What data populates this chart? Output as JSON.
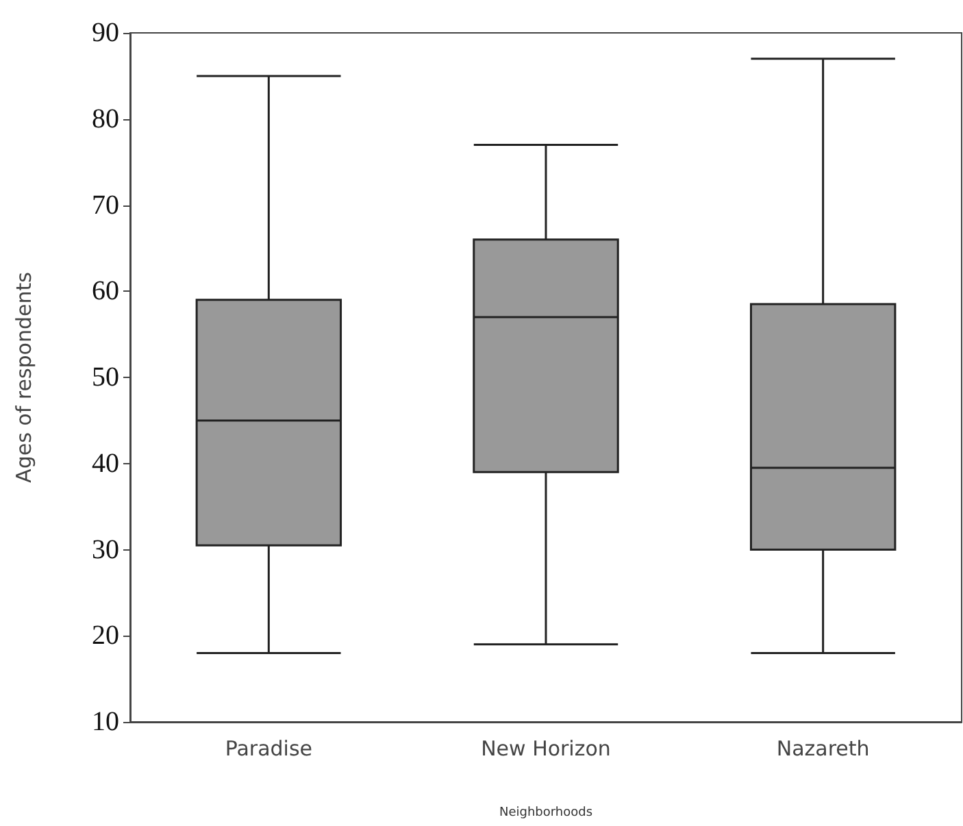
{
  "chart_data": {
    "type": "box",
    "xlabel": "Neighborhoods",
    "ylabel": "Ages of respondents",
    "categories": [
      "Paradise",
      "New Horizon",
      "Nazareth"
    ],
    "boxes": [
      {
        "low": 18,
        "q1": 30.5,
        "median": 45,
        "q3": 59,
        "high": 85
      },
      {
        "low": 19,
        "q1": 39,
        "median": 57,
        "q3": 66,
        "high": 77
      },
      {
        "low": 18,
        "q1": 30,
        "median": 39.5,
        "q3": 58.5,
        "high": 87
      }
    ],
    "color": "#999999",
    "ylim": [
      10,
      90
    ],
    "yticks": [
      10,
      20,
      30,
      40,
      50,
      60,
      70,
      80,
      90
    ],
    "grid": false
  }
}
